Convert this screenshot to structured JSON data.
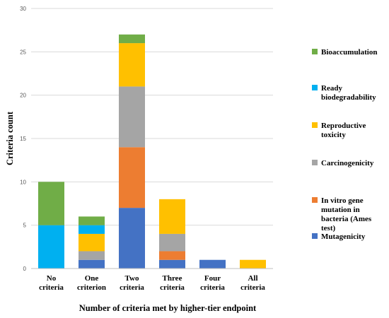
{
  "chart_data": {
    "type": "bar",
    "stacked": true,
    "categories": [
      [
        "No",
        "criteria"
      ],
      [
        "One",
        "criterion"
      ],
      [
        "Two",
        "criteria"
      ],
      [
        "Three",
        "criteria"
      ],
      [
        "Four",
        "criteria"
      ],
      [
        "All",
        "criteria"
      ]
    ],
    "series": [
      {
        "name": "Mutagenicity",
        "color": "#4472C4",
        "values": [
          0,
          1,
          7,
          1,
          1,
          0
        ]
      },
      {
        "name": "In vitro gene mutation in bacteria (Ames test)",
        "color": "#ED7D31",
        "values": [
          0,
          0,
          7,
          1,
          0,
          0
        ]
      },
      {
        "name": "Carcinogenicity",
        "color": "#A5A5A5",
        "values": [
          0,
          1,
          7,
          2,
          0,
          0
        ]
      },
      {
        "name": "Reproductive toxicity",
        "color": "#FFC000",
        "values": [
          0,
          2,
          5,
          4,
          0,
          1
        ]
      },
      {
        "name": "Ready biodegradability",
        "color": "#00B0F0",
        "values": [
          5,
          1,
          0,
          0,
          0,
          0
        ]
      },
      {
        "name": "Bioaccumulation",
        "color": "#70AD47",
        "values": [
          5,
          1,
          1,
          0,
          0,
          0
        ]
      }
    ],
    "legend_order": [
      5,
      4,
      3,
      2,
      1,
      0
    ],
    "legend_lines": [
      [
        "Bioaccumulation"
      ],
      [
        "Ready",
        "biodegradability"
      ],
      [
        "Reproductive",
        "toxicity"
      ],
      [
        "Carcinogenicity"
      ],
      [
        "In vitro gene",
        "mutation in",
        "bacteria (Ames",
        "test)"
      ],
      [
        "Mutagenicity"
      ]
    ],
    "legend_position": "right",
    "xlabel": "Number of criteria met by higher-tier endpoint",
    "ylabel": "Criteria count",
    "ylim": [
      0,
      30
    ],
    "yticks": [
      0,
      5,
      10,
      15,
      20,
      25,
      30
    ],
    "grid": true
  }
}
